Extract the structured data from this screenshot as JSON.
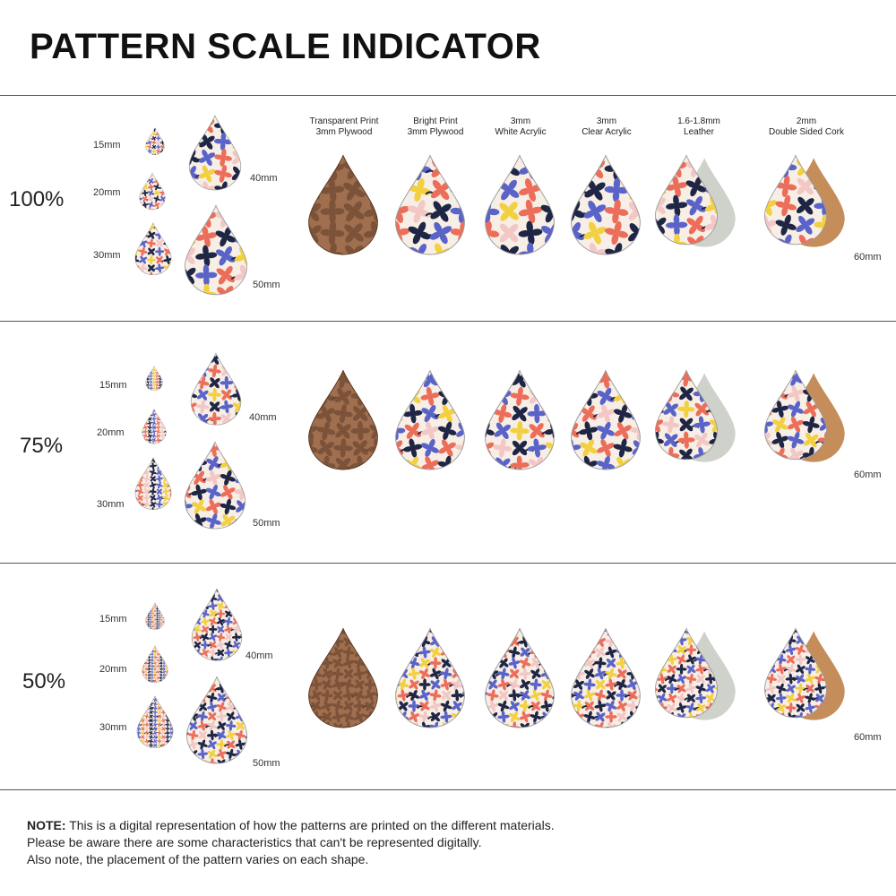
{
  "title": "PATTERN SCALE INDICATOR",
  "materials": [
    {
      "line1": "Transparent Print",
      "line2": "3mm Plywood"
    },
    {
      "line1": "Bright Print",
      "line2": "3mm Plywood"
    },
    {
      "line1": "3mm",
      "line2": "White Acrylic"
    },
    {
      "line1": "3mm",
      "line2": "Clear Acrylic"
    },
    {
      "line1": "1.6-1.8mm",
      "line2": "Leather"
    },
    {
      "line1": "2mm",
      "line2": "Double Sided Cork"
    }
  ],
  "rows": [
    {
      "scale": "100%",
      "sizes": [
        "15mm",
        "20mm",
        "30mm",
        "40mm",
        "50mm"
      ],
      "large": "60mm"
    },
    {
      "scale": "75%",
      "sizes": [
        "15mm",
        "20mm",
        "30mm",
        "40mm",
        "50mm"
      ],
      "large": "60mm"
    },
    {
      "scale": "50%",
      "sizes": [
        "15mm",
        "20mm",
        "30mm",
        "40mm",
        "50mm"
      ],
      "large": "60mm"
    }
  ],
  "note": {
    "bold": "NOTE:",
    "line1": " This is a digital representation of how the patterns are printed on the different materials.",
    "line2": "Please be aware there are some characteristics that can't be represented digitally.",
    "line3": "Also note, the placement of the pattern varies on each shape."
  },
  "colors": {
    "navy": "#1f2645",
    "blue": "#5a63c8",
    "coral": "#ec6e5a",
    "pink": "#f3c7c5",
    "yellow": "#f2d040",
    "cream": "#f7efe6",
    "wood": "#8a5a3b",
    "leather": "#cfd1cb",
    "cork": "#c48d5a"
  }
}
